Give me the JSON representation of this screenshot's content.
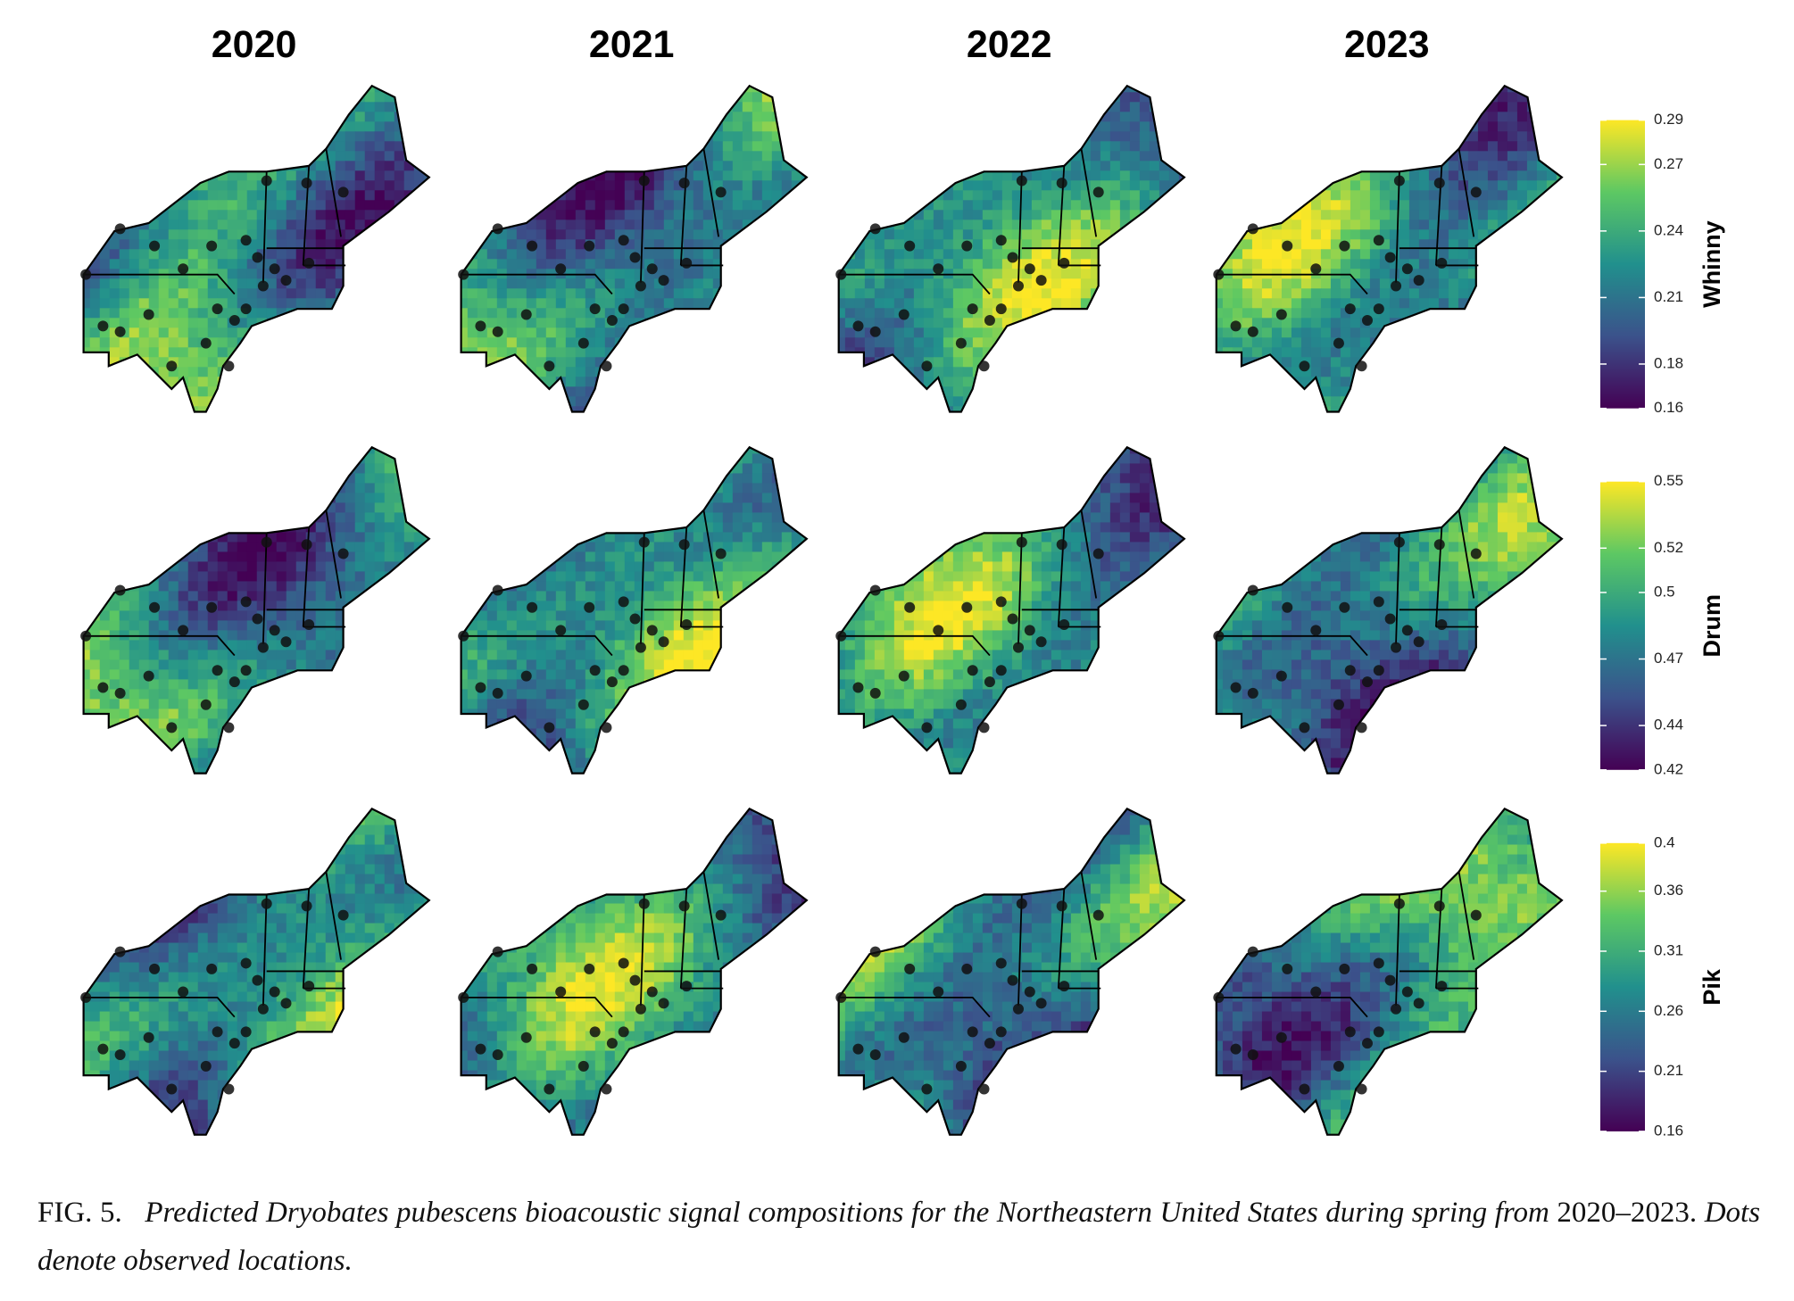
{
  "figure": {
    "columns": [
      "2020",
      "2021",
      "2022",
      "2023"
    ],
    "rows": [
      {
        "name": "Whinny",
        "lim": [
          0.16,
          0.29
        ],
        "ticks": [
          0.16,
          0.18,
          0.21,
          0.24,
          0.27,
          0.29
        ]
      },
      {
        "name": "Drum",
        "lim": [
          0.42,
          0.55
        ],
        "ticks": [
          0.42,
          0.44,
          0.47,
          0.5,
          0.52,
          0.55
        ]
      },
      {
        "name": "Pik",
        "lim": [
          0.16,
          0.4
        ],
        "ticks": [
          0.16,
          0.21,
          0.26,
          0.31,
          0.36,
          0.4
        ]
      }
    ],
    "colormap": [
      "#440154",
      "#3b528b",
      "#21908d",
      "#5dc863",
      "#fde725"
    ]
  },
  "caption": {
    "label": "FIG. 5.",
    "parts": [
      "Predicted Dryobates pubescens bioacoustic signal compositions for the Northeastern United States during spring from",
      "2020–2023.",
      "Dots denote observed locations."
    ]
  }
}
